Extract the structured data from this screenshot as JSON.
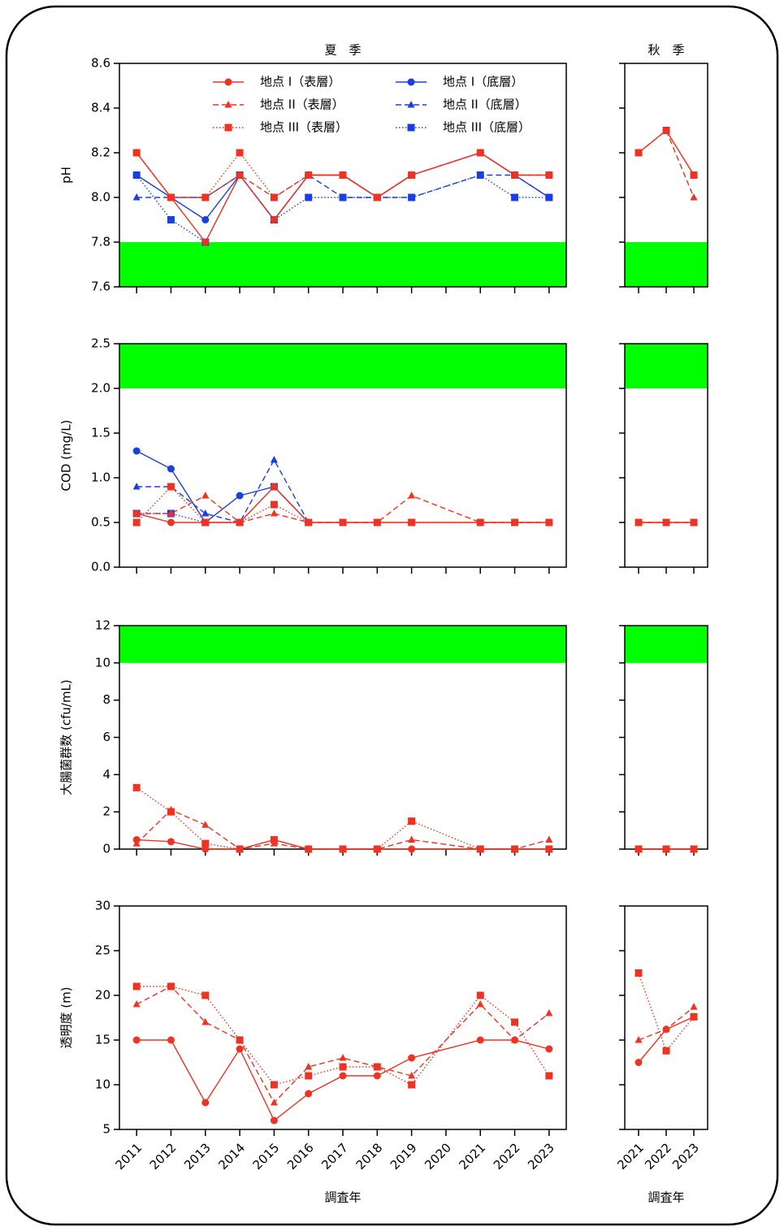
{
  "chart_data": [
    {
      "type": "line",
      "title": "夏　季",
      "y_label": "pH",
      "x": [
        2011,
        2012,
        2013,
        2014,
        2015,
        2016,
        2017,
        2018,
        2019,
        2021,
        2022,
        2023
      ],
      "xlim": [
        2010.5,
        2023.5
      ],
      "ylim": [
        7.6,
        8.6
      ],
      "yticks": [
        7.6,
        7.8,
        {
          "value": 8,
          "label": "8.0"
        },
        8.2,
        8.4,
        8.6
      ],
      "reference_band": [
        7.6,
        7.8
      ],
      "band_color": "#00ff00",
      "series": [
        {
          "name": "地点 III（底層）",
          "color": "#1a3fe0",
          "dash": "dotted",
          "marker": "square",
          "values": [
            8.1,
            7.9,
            7.8,
            8.1,
            7.9,
            8.0,
            8.0,
            8.0,
            8.0,
            8.1,
            8.0,
            8.0
          ]
        },
        {
          "name": "地点 II（底層）",
          "color": "#1a3fe0",
          "dash": "dashed",
          "marker": "triangle",
          "values": [
            8.0,
            8.0,
            8.0,
            8.1,
            7.9,
            8.1,
            8.0,
            8.0,
            8.0,
            8.1,
            8.1,
            8.0
          ]
        },
        {
          "name": "地点 I（底層）",
          "color": "#1a3fe0",
          "dash": "solid",
          "marker": "circle",
          "values": [
            8.1,
            8.0,
            7.9,
            8.1,
            7.9,
            8.1,
            8.1,
            8.0,
            8.1,
            8.2,
            8.1,
            8.0
          ]
        },
        {
          "name": "地点 III（表層）",
          "color": "#ee3322",
          "dash": "dotted",
          "marker": "square",
          "values": [
            8.2,
            8.0,
            8.0,
            8.2,
            8.0,
            8.1,
            8.1,
            8.0,
            8.1,
            8.2,
            8.1,
            8.1
          ]
        },
        {
          "name": "地点 II（表層）",
          "color": "#ee3322",
          "dash": "dashed",
          "marker": "triangle",
          "values": [
            8.2,
            8.0,
            8.0,
            8.1,
            8.0,
            8.1,
            8.1,
            8.0,
            8.1,
            8.2,
            8.1,
            8.1
          ]
        },
        {
          "name": "地点 I（表層）",
          "color": "#ee3322",
          "dash": "solid",
          "marker": "circle",
          "values": [
            8.2,
            8.0,
            7.8,
            8.1,
            7.9,
            8.1,
            8.1,
            8.0,
            8.1,
            8.2,
            8.1,
            8.1
          ]
        }
      ]
    },
    {
      "type": "line",
      "y_label": "COD (mg/L)",
      "x": [
        2011,
        2012,
        2013,
        2014,
        2015,
        2016,
        2017,
        2018,
        2019,
        2021,
        2022,
        2023
      ],
      "xlim": [
        2010.5,
        2023.5
      ],
      "ylim": [
        0,
        2.5
      ],
      "yticks": [
        {
          "value": 0,
          "label": "0.0"
        },
        0.5,
        {
          "value": 1,
          "label": "1.0"
        },
        1.5,
        {
          "value": 2,
          "label": "2.0"
        },
        2.5
      ],
      "reference_band": [
        2.0,
        2.5
      ],
      "band_color": "#00ff00",
      "series": [
        {
          "color": "#1a3fe0",
          "dash": "dotted",
          "marker": "square",
          "values": [
            0.6,
            0.6,
            0.5,
            0.5,
            0.9,
            0.5,
            null,
            null,
            null,
            null,
            null,
            null
          ]
        },
        {
          "color": "#1a3fe0",
          "dash": "dashed",
          "marker": "triangle",
          "values": [
            0.9,
            0.9,
            0.6,
            0.5,
            1.2,
            0.5,
            null,
            null,
            null,
            null,
            null,
            null
          ]
        },
        {
          "color": "#1a3fe0",
          "dash": "solid",
          "marker": "circle",
          "values": [
            1.3,
            1.1,
            0.5,
            0.8,
            0.9,
            0.5,
            null,
            null,
            null,
            null,
            null,
            null
          ]
        },
        {
          "color": "#ee3322",
          "dash": "dotted",
          "marker": "square",
          "values": [
            0.5,
            0.9,
            0.5,
            0.5,
            0.7,
            0.5,
            0.5,
            0.5,
            0.5,
            0.5,
            0.5,
            0.5
          ]
        },
        {
          "color": "#ee3322",
          "dash": "dashed",
          "marker": "triangle",
          "values": [
            0.6,
            0.6,
            0.8,
            0.5,
            0.6,
            0.5,
            0.5,
            0.5,
            0.8,
            0.5,
            0.5,
            0.5
          ]
        },
        {
          "color": "#ee3322",
          "dash": "solid",
          "marker": "circle",
          "values": [
            0.6,
            0.5,
            0.5,
            0.5,
            0.9,
            0.5,
            0.5,
            0.5,
            0.5,
            0.5,
            0.5,
            0.5
          ]
        }
      ]
    },
    {
      "type": "line",
      "y_label": "大腸菌群数 (cfu/mL)",
      "x": [
        2011,
        2012,
        2013,
        2014,
        2015,
        2016,
        2017,
        2018,
        2019,
        2021,
        2022,
        2023
      ],
      "xlim": [
        2010.5,
        2023.5
      ],
      "ylim": [
        0,
        12
      ],
      "yticks": [
        0,
        2,
        4,
        6,
        8,
        10,
        12
      ],
      "reference_band": [
        10,
        12
      ],
      "band_color": "#00ff00",
      "series": [
        {
          "color": "#ee3322",
          "dash": "dotted",
          "marker": "square",
          "values": [
            3.3,
            2.0,
            0.3,
            0,
            0.5,
            0,
            0,
            0,
            1.5,
            0,
            0,
            0
          ]
        },
        {
          "color": "#ee3322",
          "dash": "dashed",
          "marker": "triangle",
          "values": [
            0.3,
            2.1,
            1.3,
            0,
            0.3,
            0,
            0,
            0,
            0.5,
            0,
            0,
            0.5
          ]
        },
        {
          "color": "#ee3322",
          "dash": "solid",
          "marker": "circle",
          "values": [
            0.5,
            0.4,
            0,
            0,
            0.5,
            0,
            0,
            0,
            0,
            0,
            0,
            0
          ]
        }
      ]
    },
    {
      "type": "line",
      "y_label": "透明度 (m)",
      "x_label": "調査年",
      "x": [
        2011,
        2012,
        2013,
        2014,
        2015,
        2016,
        2017,
        2018,
        2019,
        2021,
        2022,
        2023
      ],
      "xlim": [
        2010.5,
        2023.5
      ],
      "xticks": [
        2011,
        2012,
        2013,
        2014,
        2015,
        2016,
        2017,
        2018,
        2019,
        2020,
        2021,
        2022,
        2023
      ],
      "ylim": [
        5,
        30
      ],
      "yticks": [
        5,
        10,
        15,
        20,
        25,
        30
      ],
      "series": [
        {
          "color": "#ee3322",
          "dash": "dotted",
          "marker": "square",
          "values": [
            21,
            21,
            20,
            15,
            10,
            11,
            12,
            12,
            10,
            20,
            17,
            11
          ]
        },
        {
          "color": "#ee3322",
          "dash": "dashed",
          "marker": "triangle",
          "values": [
            19,
            21,
            17,
            15,
            8,
            12,
            13,
            12,
            11,
            19,
            15,
            18
          ]
        },
        {
          "color": "#ee3322",
          "dash": "solid",
          "marker": "circle",
          "values": [
            15,
            15,
            8,
            14,
            6,
            9,
            11,
            11,
            13,
            15,
            15,
            14
          ]
        }
      ]
    },
    {
      "type": "line",
      "title": "秋　季",
      "x": [
        2021,
        2022,
        2023
      ],
      "xlim": [
        2020.5,
        2023.5
      ],
      "ylim": [
        7.6,
        8.6
      ],
      "reference_band": [
        7.6,
        7.8
      ],
      "band_color": "#00ff00",
      "series": [
        {
          "color": "#ee3322",
          "dash": "dotted",
          "marker": "square",
          "values": [
            8.2,
            8.3,
            8.1
          ]
        },
        {
          "color": "#ee3322",
          "dash": "dashed",
          "marker": "triangle",
          "values": [
            8.2,
            8.3,
            8.0
          ]
        },
        {
          "color": "#ee3322",
          "dash": "solid",
          "marker": "circle",
          "values": [
            8.2,
            8.3,
            8.1
          ]
        }
      ]
    },
    {
      "type": "line",
      "x": [
        2021,
        2022,
        2023
      ],
      "xlim": [
        2020.5,
        2023.5
      ],
      "ylim": [
        0,
        2.5
      ],
      "reference_band": [
        2.0,
        2.5
      ],
      "band_color": "#00ff00",
      "series": [
        {
          "color": "#ee3322",
          "dash": "dotted",
          "marker": "square",
          "values": [
            0.5,
            0.5,
            0.5
          ]
        },
        {
          "color": "#ee3322",
          "dash": "dashed",
          "marker": "triangle",
          "values": [
            0.5,
            0.5,
            0.5
          ]
        },
        {
          "color": "#ee3322",
          "dash": "solid",
          "marker": "circle",
          "values": [
            0.5,
            0.5,
            0.5
          ]
        }
      ]
    },
    {
      "type": "line",
      "x": [
        2021,
        2022,
        2023
      ],
      "xlim": [
        2020.5,
        2023.5
      ],
      "ylim": [
        0,
        12
      ],
      "reference_band": [
        10,
        12
      ],
      "band_color": "#00ff00",
      "series": [
        {
          "color": "#ee3322",
          "dash": "dotted",
          "marker": "square",
          "values": [
            0,
            0,
            0
          ]
        },
        {
          "color": "#ee3322",
          "dash": "dashed",
          "marker": "triangle",
          "values": [
            0,
            0,
            0
          ]
        },
        {
          "color": "#ee3322",
          "dash": "solid",
          "marker": "circle",
          "values": [
            0,
            0,
            0
          ]
        }
      ]
    },
    {
      "type": "line",
      "x_label": "調査年",
      "x": [
        2021,
        2022,
        2023
      ],
      "xlim": [
        2020.5,
        2023.5
      ],
      "xticks": [
        2021,
        2022,
        2023
      ],
      "ylim": [
        5,
        30
      ],
      "series": [
        {
          "color": "#ee3322",
          "dash": "dotted",
          "marker": "square",
          "values": [
            22.5,
            13.8,
            17.6
          ]
        },
        {
          "color": "#ee3322",
          "dash": "dashed",
          "marker": "triangle",
          "values": [
            15,
            16.2,
            18.7
          ]
        },
        {
          "color": "#ee3322",
          "dash": "solid",
          "marker": "circle",
          "values": [
            12.5,
            16.2,
            17.6
          ]
        }
      ]
    }
  ]
}
